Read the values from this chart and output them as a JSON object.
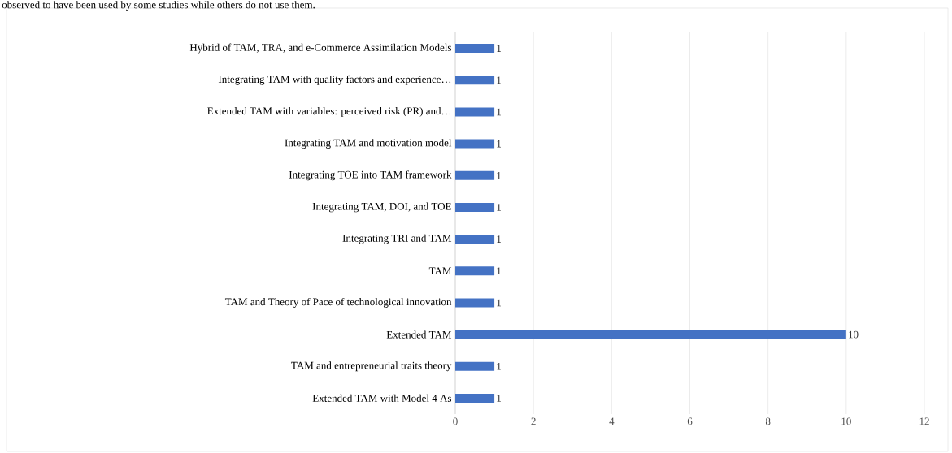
{
  "chart_data": {
    "type": "bar",
    "orientation": "horizontal",
    "annotations": [
      "observed to have been used by some studies while others do not use them."
    ],
    "categories": [
      "Hybrid of TAM, TRA, and e-Commerce Assimilation Models",
      "Integrating TAM with quality factors and experience…",
      "Extended TAM with variables: perceived risk (PR) and…",
      "Integrating TAM and motivation model",
      "Integrating TOE into TAM framework",
      "Integrating TAM, DOI, and TOE",
      "Integrating TRI and TAM",
      "TAM",
      "TAM and Theory of Pace of technological innovation",
      "Extended TAM",
      "TAM and entrepreneurial traits theory",
      "Extended TAM with Model 4 As"
    ],
    "values": [
      1,
      1,
      1,
      1,
      1,
      1,
      1,
      1,
      1,
      10,
      1,
      1
    ],
    "color": "#4472c4",
    "xlim": [
      0,
      12
    ],
    "xticks": [
      0,
      2,
      4,
      6,
      8,
      10,
      12
    ],
    "grid": "x",
    "data_labels": true
  }
}
